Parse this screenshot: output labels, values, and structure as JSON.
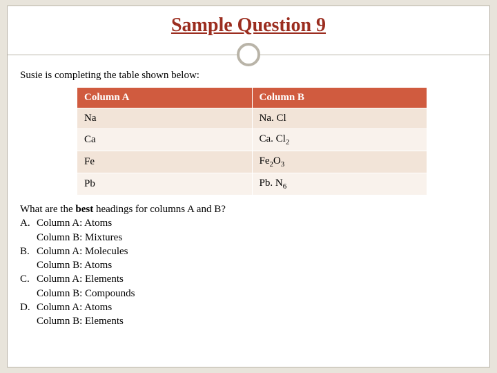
{
  "title": "Sample Question 9",
  "intro": "Susie is completing the table shown below:",
  "table": {
    "header_bg": "#d05b3f",
    "header_color": "#ffffff",
    "row_odd_bg": "#f2e4d8",
    "row_even_bg": "#f9f2ec",
    "columns": [
      "Column A",
      "Column B"
    ],
    "rows": [
      {
        "a": "Na",
        "b_base": "Na. Cl",
        "b_sub": ""
      },
      {
        "a": "Ca",
        "b_base": "Ca. Cl",
        "b_sub": "2"
      },
      {
        "a": "Fe",
        "b_base": "Fe",
        "b_sub_mid": "2",
        "b_tail": "O",
        "b_sub": "3"
      },
      {
        "a": "Pb",
        "b_base": "Pb. N",
        "b_sub": "6"
      }
    ]
  },
  "question": {
    "prefix": "What are the ",
    "bold": "best",
    "suffix": " headings for columns A and B?"
  },
  "options": [
    {
      "letter": "A.",
      "line1": "Column A: Atoms",
      "line2": "Column B: Mixtures"
    },
    {
      "letter": "B.",
      "line1": "Column A: Molecules",
      "line2": "Column B: Atoms"
    },
    {
      "letter": "C.",
      "line1": "Column A: Elements",
      "line2": "Column B: Compounds"
    },
    {
      "letter": "D.",
      "line1": "Column A: Atoms",
      "line2": "Column B: Elements"
    }
  ],
  "colors": {
    "title": "#9b2d1f",
    "page_bg": "#e8e4db",
    "slide_bg": "#ffffff",
    "border": "#b9b4a8"
  }
}
